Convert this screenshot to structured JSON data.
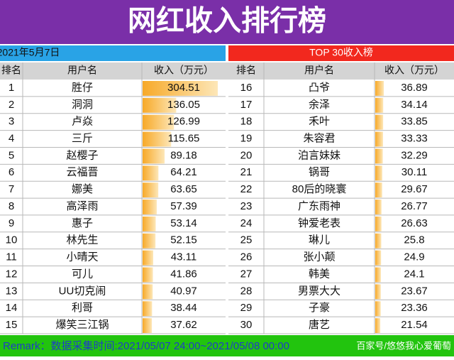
{
  "title": "网红收入排行榜",
  "date": "2021年5月7日",
  "subtitle": "TOP 30收入榜",
  "columns": [
    "排名",
    "用户名",
    "收入（万元）"
  ],
  "rows": [
    [
      1,
      "胜仔",
      304.51
    ],
    [
      2,
      "洞洞",
      136.05
    ],
    [
      3,
      "卢焱",
      126.99
    ],
    [
      4,
      "三斤",
      115.65
    ],
    [
      5,
      "赵樱子",
      89.18
    ],
    [
      6,
      "云福晋",
      64.21
    ],
    [
      7,
      "娜美",
      63.65
    ],
    [
      8,
      "高泽雨",
      57.39
    ],
    [
      9,
      "惠子",
      53.14
    ],
    [
      10,
      "林先生",
      52.15
    ],
    [
      11,
      "小晴天",
      43.11
    ],
    [
      12,
      "可儿",
      41.86
    ],
    [
      13,
      "UU切克闹",
      40.97
    ],
    [
      14,
      "利哥",
      38.44
    ],
    [
      15,
      "爆笑三江锅",
      37.62
    ],
    [
      16,
      "凸爷",
      36.89
    ],
    [
      17,
      "余泽",
      34.14
    ],
    [
      18,
      "禾叶",
      33.85
    ],
    [
      19,
      "朱容君",
      33.33
    ],
    [
      20,
      "泊言妹妹",
      32.29
    ],
    [
      21,
      "锅哥",
      30.11
    ],
    [
      22,
      "80后的晓寰",
      29.67
    ],
    [
      23,
      "广东雨神",
      26.77
    ],
    [
      24,
      "钟爱老表",
      26.63
    ],
    [
      25,
      "琳儿",
      25.8
    ],
    [
      26,
      "张小颠",
      24.9
    ],
    [
      27,
      "韩美",
      24.1
    ],
    [
      28,
      "男票大大",
      23.67
    ],
    [
      29,
      "子豪",
      23.36
    ],
    [
      30,
      "唐艺",
      21.54
    ]
  ],
  "remark": "Remark：数据采集时间:2021/05/07 24:00~2021/05/08 00:00",
  "watermark": "百家号/悠悠我心爱葡萄"
}
